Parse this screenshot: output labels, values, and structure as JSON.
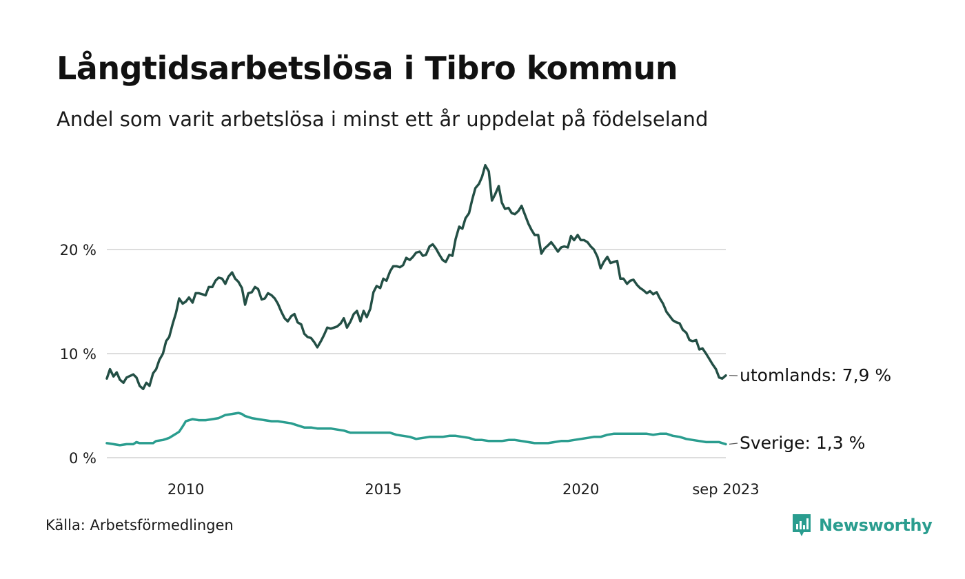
{
  "title": "Långtidsarbetslösa i Tibro kommun",
  "subtitle": "Andel som varit arbetslösa i minst ett år uppdelat på födelseland",
  "source": "Källa: Arbetsförmedlingen",
  "brand": "Newsworthy",
  "colors": {
    "utomlands": "#234f45",
    "sverige": "#2a9d8f",
    "grid": "#dddddd",
    "brand": "#2a9d8f"
  },
  "chart_data": {
    "type": "line",
    "title": "Långtidsarbetslösa i Tibro kommun",
    "xlabel": "",
    "ylabel": "",
    "ylim": [
      0,
      28
    ],
    "yticks": [
      0,
      10,
      20
    ],
    "ytick_labels": [
      "0 %",
      "10 %",
      "20 %"
    ],
    "xlim": [
      2008.0,
      2023.67
    ],
    "xticks": [
      2010,
      2015,
      2020,
      2023.67
    ],
    "xtick_labels": [
      "2010",
      "2015",
      "2020",
      "sep 2023"
    ],
    "grid": true,
    "series": [
      {
        "name": "utomlands",
        "end_label": "utomlands: 7,9 %",
        "points": [
          [
            2008.0,
            7.6
          ],
          [
            2008.08,
            8.5
          ],
          [
            2008.17,
            7.8
          ],
          [
            2008.25,
            8.2
          ],
          [
            2008.33,
            7.5
          ],
          [
            2008.42,
            7.2
          ],
          [
            2008.5,
            7.7
          ],
          [
            2008.67,
            8.0
          ],
          [
            2008.75,
            7.7
          ],
          [
            2008.83,
            6.9
          ],
          [
            2008.92,
            6.6
          ],
          [
            2009.0,
            7.2
          ],
          [
            2009.08,
            6.9
          ],
          [
            2009.17,
            8.1
          ],
          [
            2009.25,
            8.5
          ],
          [
            2009.33,
            9.4
          ],
          [
            2009.42,
            10.0
          ],
          [
            2009.5,
            11.2
          ],
          [
            2009.58,
            11.6
          ],
          [
            2009.67,
            12.9
          ],
          [
            2009.75,
            13.9
          ],
          [
            2009.83,
            15.3
          ],
          [
            2009.92,
            14.8
          ],
          [
            2010.0,
            15.0
          ],
          [
            2010.08,
            15.4
          ],
          [
            2010.17,
            14.9
          ],
          [
            2010.25,
            15.8
          ],
          [
            2010.33,
            15.8
          ],
          [
            2010.42,
            15.7
          ],
          [
            2010.5,
            15.6
          ],
          [
            2010.58,
            16.4
          ],
          [
            2010.67,
            16.4
          ],
          [
            2010.75,
            17.0
          ],
          [
            2010.83,
            17.3
          ],
          [
            2010.92,
            17.2
          ],
          [
            2011.0,
            16.7
          ],
          [
            2011.08,
            17.4
          ],
          [
            2011.17,
            17.8
          ],
          [
            2011.25,
            17.2
          ],
          [
            2011.33,
            16.9
          ],
          [
            2011.42,
            16.3
          ],
          [
            2011.5,
            14.7
          ],
          [
            2011.58,
            15.8
          ],
          [
            2011.67,
            15.9
          ],
          [
            2011.75,
            16.4
          ],
          [
            2011.83,
            16.2
          ],
          [
            2011.92,
            15.2
          ],
          [
            2012.0,
            15.3
          ],
          [
            2012.08,
            15.8
          ],
          [
            2012.17,
            15.6
          ],
          [
            2012.25,
            15.3
          ],
          [
            2012.33,
            14.8
          ],
          [
            2012.42,
            14.0
          ],
          [
            2012.5,
            13.4
          ],
          [
            2012.58,
            13.1
          ],
          [
            2012.67,
            13.6
          ],
          [
            2012.75,
            13.8
          ],
          [
            2012.83,
            13.0
          ],
          [
            2012.92,
            12.8
          ],
          [
            2013.0,
            11.9
          ],
          [
            2013.08,
            11.6
          ],
          [
            2013.17,
            11.5
          ],
          [
            2013.25,
            11.1
          ],
          [
            2013.33,
            10.6
          ],
          [
            2013.42,
            11.2
          ],
          [
            2013.5,
            11.8
          ],
          [
            2013.58,
            12.5
          ],
          [
            2013.67,
            12.4
          ],
          [
            2013.75,
            12.5
          ],
          [
            2013.83,
            12.6
          ],
          [
            2013.92,
            12.9
          ],
          [
            2014.0,
            13.4
          ],
          [
            2014.08,
            12.5
          ],
          [
            2014.17,
            13.1
          ],
          [
            2014.25,
            13.8
          ],
          [
            2014.33,
            14.1
          ],
          [
            2014.42,
            13.1
          ],
          [
            2014.5,
            14.1
          ],
          [
            2014.58,
            13.5
          ],
          [
            2014.67,
            14.3
          ],
          [
            2014.75,
            15.9
          ],
          [
            2014.83,
            16.5
          ],
          [
            2014.92,
            16.3
          ],
          [
            2015.0,
            17.2
          ],
          [
            2015.08,
            17.0
          ],
          [
            2015.17,
            17.9
          ],
          [
            2015.25,
            18.4
          ],
          [
            2015.33,
            18.4
          ],
          [
            2015.42,
            18.3
          ],
          [
            2015.5,
            18.5
          ],
          [
            2015.58,
            19.2
          ],
          [
            2015.67,
            19.0
          ],
          [
            2015.75,
            19.3
          ],
          [
            2015.83,
            19.7
          ],
          [
            2015.92,
            19.8
          ],
          [
            2016.0,
            19.4
          ],
          [
            2016.08,
            19.5
          ],
          [
            2016.17,
            20.3
          ],
          [
            2016.25,
            20.5
          ],
          [
            2016.33,
            20.1
          ],
          [
            2016.42,
            19.5
          ],
          [
            2016.5,
            19.0
          ],
          [
            2016.58,
            18.8
          ],
          [
            2016.67,
            19.5
          ],
          [
            2016.75,
            19.4
          ],
          [
            2016.83,
            21.0
          ],
          [
            2016.92,
            22.2
          ],
          [
            2017.0,
            22.0
          ],
          [
            2017.08,
            23.0
          ],
          [
            2017.17,
            23.5
          ],
          [
            2017.25,
            24.8
          ],
          [
            2017.33,
            25.9
          ],
          [
            2017.42,
            26.3
          ],
          [
            2017.5,
            27.0
          ],
          [
            2017.58,
            28.1
          ],
          [
            2017.67,
            27.5
          ],
          [
            2017.75,
            24.7
          ],
          [
            2017.83,
            25.3
          ],
          [
            2017.92,
            26.1
          ],
          [
            2018.0,
            24.5
          ],
          [
            2018.08,
            23.9
          ],
          [
            2018.17,
            24.0
          ],
          [
            2018.25,
            23.5
          ],
          [
            2018.33,
            23.4
          ],
          [
            2018.42,
            23.7
          ],
          [
            2018.5,
            24.2
          ],
          [
            2018.58,
            23.4
          ],
          [
            2018.67,
            22.5
          ],
          [
            2018.75,
            21.9
          ],
          [
            2018.83,
            21.4
          ],
          [
            2018.92,
            21.4
          ],
          [
            2019.0,
            19.6
          ],
          [
            2019.08,
            20.1
          ],
          [
            2019.17,
            20.4
          ],
          [
            2019.25,
            20.7
          ],
          [
            2019.33,
            20.3
          ],
          [
            2019.42,
            19.8
          ],
          [
            2019.5,
            20.2
          ],
          [
            2019.58,
            20.3
          ],
          [
            2019.67,
            20.2
          ],
          [
            2019.75,
            21.3
          ],
          [
            2019.83,
            20.9
          ],
          [
            2019.92,
            21.4
          ],
          [
            2020.0,
            20.9
          ],
          [
            2020.08,
            20.9
          ],
          [
            2020.17,
            20.7
          ],
          [
            2020.25,
            20.3
          ],
          [
            2020.33,
            20.0
          ],
          [
            2020.42,
            19.3
          ],
          [
            2020.5,
            18.2
          ],
          [
            2020.58,
            18.8
          ],
          [
            2020.67,
            19.3
          ],
          [
            2020.75,
            18.7
          ],
          [
            2020.83,
            18.8
          ],
          [
            2020.92,
            18.9
          ],
          [
            2021.0,
            17.2
          ],
          [
            2021.08,
            17.2
          ],
          [
            2021.17,
            16.7
          ],
          [
            2021.25,
            17.0
          ],
          [
            2021.33,
            17.1
          ],
          [
            2021.42,
            16.6
          ],
          [
            2021.5,
            16.3
          ],
          [
            2021.58,
            16.1
          ],
          [
            2021.67,
            15.8
          ],
          [
            2021.75,
            16.0
          ],
          [
            2021.83,
            15.7
          ],
          [
            2021.92,
            15.9
          ],
          [
            2022.0,
            15.3
          ],
          [
            2022.08,
            14.8
          ],
          [
            2022.17,
            14.0
          ],
          [
            2022.25,
            13.6
          ],
          [
            2022.33,
            13.2
          ],
          [
            2022.42,
            13.0
          ],
          [
            2022.5,
            12.9
          ],
          [
            2022.58,
            12.3
          ],
          [
            2022.67,
            12.0
          ],
          [
            2022.75,
            11.3
          ],
          [
            2022.83,
            11.2
          ],
          [
            2022.92,
            11.3
          ],
          [
            2023.0,
            10.4
          ],
          [
            2023.08,
            10.5
          ],
          [
            2023.17,
            10.0
          ],
          [
            2023.25,
            9.5
          ],
          [
            2023.33,
            9.0
          ],
          [
            2023.42,
            8.5
          ],
          [
            2023.5,
            7.7
          ],
          [
            2023.58,
            7.6
          ],
          [
            2023.67,
            7.9
          ]
        ]
      },
      {
        "name": "Sverige",
        "end_label": "Sverige: 1,3 %",
        "points": [
          [
            2008.0,
            1.4
          ],
          [
            2008.17,
            1.3
          ],
          [
            2008.33,
            1.2
          ],
          [
            2008.5,
            1.3
          ],
          [
            2008.67,
            1.3
          ],
          [
            2008.75,
            1.5
          ],
          [
            2008.83,
            1.4
          ],
          [
            2009.0,
            1.4
          ],
          [
            2009.17,
            1.4
          ],
          [
            2009.25,
            1.6
          ],
          [
            2009.42,
            1.7
          ],
          [
            2009.58,
            1.9
          ],
          [
            2009.75,
            2.3
          ],
          [
            2009.83,
            2.5
          ],
          [
            2009.92,
            3.0
          ],
          [
            2010.0,
            3.5
          ],
          [
            2010.17,
            3.7
          ],
          [
            2010.33,
            3.6
          ],
          [
            2010.5,
            3.6
          ],
          [
            2010.67,
            3.7
          ],
          [
            2010.83,
            3.8
          ],
          [
            2011.0,
            4.1
          ],
          [
            2011.17,
            4.2
          ],
          [
            2011.33,
            4.3
          ],
          [
            2011.42,
            4.2
          ],
          [
            2011.5,
            4.0
          ],
          [
            2011.67,
            3.8
          ],
          [
            2011.83,
            3.7
          ],
          [
            2012.0,
            3.6
          ],
          [
            2012.17,
            3.5
          ],
          [
            2012.33,
            3.5
          ],
          [
            2012.5,
            3.4
          ],
          [
            2012.67,
            3.3
          ],
          [
            2012.83,
            3.1
          ],
          [
            2013.0,
            2.9
          ],
          [
            2013.17,
            2.9
          ],
          [
            2013.33,
            2.8
          ],
          [
            2013.5,
            2.8
          ],
          [
            2013.67,
            2.8
          ],
          [
            2013.83,
            2.7
          ],
          [
            2014.0,
            2.6
          ],
          [
            2014.17,
            2.4
          ],
          [
            2014.33,
            2.4
          ],
          [
            2014.5,
            2.4
          ],
          [
            2014.67,
            2.4
          ],
          [
            2014.83,
            2.4
          ],
          [
            2015.0,
            2.4
          ],
          [
            2015.17,
            2.4
          ],
          [
            2015.33,
            2.2
          ],
          [
            2015.5,
            2.1
          ],
          [
            2015.67,
            2.0
          ],
          [
            2015.83,
            1.8
          ],
          [
            2016.0,
            1.9
          ],
          [
            2016.17,
            2.0
          ],
          [
            2016.33,
            2.0
          ],
          [
            2016.5,
            2.0
          ],
          [
            2016.67,
            2.1
          ],
          [
            2016.83,
            2.1
          ],
          [
            2017.0,
            2.0
          ],
          [
            2017.17,
            1.9
          ],
          [
            2017.33,
            1.7
          ],
          [
            2017.5,
            1.7
          ],
          [
            2017.67,
            1.6
          ],
          [
            2017.83,
            1.6
          ],
          [
            2018.0,
            1.6
          ],
          [
            2018.17,
            1.7
          ],
          [
            2018.33,
            1.7
          ],
          [
            2018.5,
            1.6
          ],
          [
            2018.67,
            1.5
          ],
          [
            2018.83,
            1.4
          ],
          [
            2019.0,
            1.4
          ],
          [
            2019.17,
            1.4
          ],
          [
            2019.33,
            1.5
          ],
          [
            2019.5,
            1.6
          ],
          [
            2019.67,
            1.6
          ],
          [
            2019.83,
            1.7
          ],
          [
            2020.0,
            1.8
          ],
          [
            2020.17,
            1.9
          ],
          [
            2020.33,
            2.0
          ],
          [
            2020.5,
            2.0
          ],
          [
            2020.67,
            2.2
          ],
          [
            2020.83,
            2.3
          ],
          [
            2021.0,
            2.3
          ],
          [
            2021.17,
            2.3
          ],
          [
            2021.33,
            2.3
          ],
          [
            2021.5,
            2.3
          ],
          [
            2021.67,
            2.3
          ],
          [
            2021.83,
            2.2
          ],
          [
            2022.0,
            2.3
          ],
          [
            2022.17,
            2.3
          ],
          [
            2022.33,
            2.1
          ],
          [
            2022.5,
            2.0
          ],
          [
            2022.67,
            1.8
          ],
          [
            2022.83,
            1.7
          ],
          [
            2023.0,
            1.6
          ],
          [
            2023.17,
            1.5
          ],
          [
            2023.33,
            1.5
          ],
          [
            2023.5,
            1.5
          ],
          [
            2023.67,
            1.3
          ]
        ]
      }
    ]
  }
}
